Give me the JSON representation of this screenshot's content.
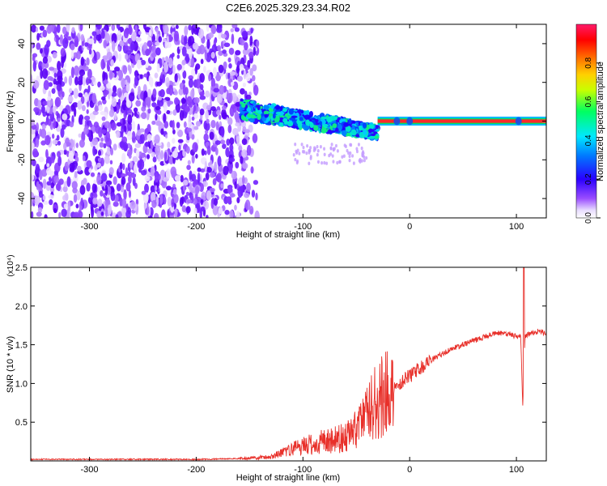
{
  "figure": {
    "title": "C2E6.2025.329.23.34.R02"
  },
  "chart_data": [
    {
      "type": "heatmap",
      "xlabel": "Height of straight line (km)",
      "ylabel": "Frequency (Hz)",
      "xlim": [
        -355,
        128
      ],
      "ylim": [
        -50,
        50
      ],
      "x_ticks": [
        -300,
        -200,
        -100,
        0,
        100
      ],
      "y_ticks": [
        -40,
        -20,
        0,
        20,
        40
      ],
      "colorbar": {
        "label": "Normalized spectral amplitude",
        "range": [
          0.0,
          1.0
        ],
        "ticks": [
          0.0,
          0.2,
          0.4,
          0.6,
          0.8
        ],
        "colormap": [
          "#ffffff",
          "#6a00ff",
          "#0000ff",
          "#00d0ff",
          "#00ff00",
          "#ffff00",
          "#ff8000",
          "#ff0000",
          "#ff0060"
        ]
      },
      "regions": [
        {
          "x_range": [
            -355,
            -150
          ],
          "freq_range": [
            -50,
            50
          ],
          "amplitude": "low (0.05-0.2)",
          "pattern": "broadband noise"
        },
        {
          "x_range": [
            -158,
            -30
          ],
          "freq_center": [
            6,
            -6
          ],
          "freq_width": 10,
          "amplitude": "0.2-0.5"
        },
        {
          "x_range": [
            -30,
            128
          ],
          "freq_center": 0,
          "freq_width": 1.5,
          "amplitude": "~0.95"
        }
      ]
    },
    {
      "type": "line",
      "xlabel": "Height of straight line (km)",
      "ylabel": "SNR (10 * v/v)",
      "y_multiplier": "(x10⁴)",
      "xlim": [
        -355,
        128
      ],
      "ylim": [
        0,
        25000
      ],
      "x_ticks": [
        -300,
        -200,
        -100,
        0,
        100
      ],
      "y_ticks": [
        5000,
        10000,
        15000,
        20000,
        25000
      ],
      "y_tick_labels": [
        "0.5",
        "1.0",
        "1.5",
        "2.0",
        "2.5"
      ],
      "series": [
        {
          "color": "#e8302a",
          "x": [
            -355,
            -300,
            -250,
            -200,
            -160,
            -130,
            -110,
            -100,
            -80,
            -60,
            -50,
            -40,
            -30,
            -20,
            -10,
            0,
            20,
            40,
            60,
            80,
            95,
            100,
            104,
            106,
            108,
            110,
            120,
            128
          ],
          "y": [
            200,
            200,
            200,
            200,
            300,
            500,
            1500,
            2000,
            2500,
            3000,
            4000,
            6000,
            8000,
            9000,
            10000,
            11000,
            13000,
            14500,
            15500,
            16500,
            16400,
            16000,
            16000,
            7000,
            16000,
            16300,
            16700,
            16500
          ]
        }
      ]
    }
  ]
}
